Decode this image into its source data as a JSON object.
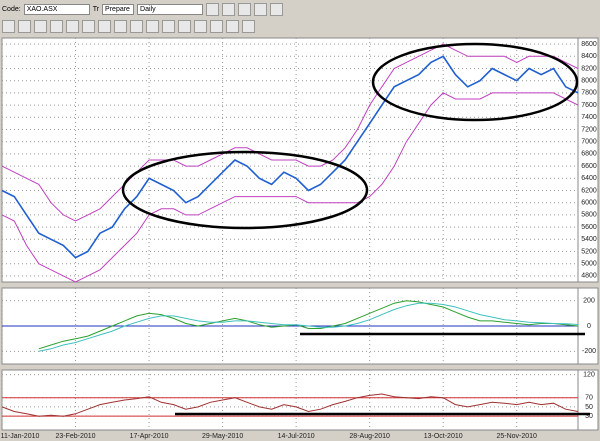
{
  "toolbar": {
    "code_label": "Code:",
    "code": "XAO.ASX",
    "tr": "Tr",
    "prepare": "Prepare",
    "period": "Daily"
  },
  "chart_data": [
    {
      "type": "line",
      "ylim": [
        4700,
        8700
      ],
      "yticks": [
        4800,
        5000,
        5200,
        5400,
        5600,
        5800,
        6000,
        6200,
        6400,
        6600,
        6800,
        7000,
        7200,
        7400,
        7600,
        7800,
        8000,
        8200,
        8400,
        8600
      ],
      "grid": true,
      "series": [
        {
          "color": "#1f5fd0",
          "values": [
            6200,
            6100,
            5800,
            5500,
            5400,
            5300,
            5100,
            5200,
            5500,
            5600,
            5900,
            6100,
            6400,
            6300,
            6200,
            6000,
            6100,
            6300,
            6500,
            6700,
            6600,
            6400,
            6300,
            6500,
            6400,
            6200,
            6300,
            6500,
            6700,
            7000,
            7300,
            7600,
            7900,
            8000,
            8100,
            8300,
            8400,
            8100,
            7900,
            8000,
            8200,
            8100,
            8000,
            8200,
            8100,
            8200,
            7900,
            7800
          ]
        },
        {
          "color": "#c040c0",
          "values": [
            6600,
            6500,
            6400,
            6300,
            6000,
            5800,
            5700,
            5800,
            5900,
            6100,
            6300,
            6500,
            6700,
            6700,
            6700,
            6600,
            6600,
            6700,
            6800,
            6900,
            6900,
            6800,
            6700,
            6700,
            6700,
            6600,
            6600,
            6700,
            6900,
            7200,
            7600,
            7900,
            8200,
            8300,
            8400,
            8500,
            8600,
            8500,
            8400,
            8400,
            8400,
            8400,
            8300,
            8400,
            8400,
            8400,
            8300,
            8200
          ]
        },
        {
          "color": "#c040c0",
          "values": [
            5800,
            5700,
            5300,
            5000,
            4900,
            4800,
            4700,
            4800,
            4900,
            5100,
            5300,
            5500,
            5800,
            5900,
            5900,
            5800,
            5800,
            5900,
            6000,
            6100,
            6100,
            6100,
            6100,
            6100,
            6100,
            6000,
            6000,
            6000,
            6000,
            6000,
            6100,
            6300,
            6600,
            7000,
            7300,
            7600,
            7800,
            7700,
            7700,
            7700,
            7800,
            7800,
            7800,
            7800,
            7800,
            7800,
            7700,
            7600
          ]
        }
      ]
    },
    {
      "type": "line",
      "ylim": [
        -300,
        300
      ],
      "yticks": [
        200,
        0,
        -200
      ],
      "grid": true,
      "hlines": [
        0
      ],
      "hline_color": "#2030c0",
      "series": [
        {
          "color": "#2ca02c",
          "values": [
            null,
            null,
            null,
            -180,
            -150,
            -120,
            -100,
            -80,
            -40,
            0,
            40,
            80,
            100,
            90,
            60,
            20,
            0,
            20,
            40,
            60,
            40,
            10,
            -10,
            0,
            10,
            -20,
            -20,
            0,
            20,
            60,
            100,
            140,
            180,
            200,
            190,
            170,
            150,
            110,
            70,
            40,
            40,
            30,
            20,
            10,
            20,
            20,
            10,
            0
          ]
        },
        {
          "color": "#40c0c0",
          "values": [
            null,
            null,
            null,
            -200,
            -180,
            -150,
            -130,
            -100,
            -70,
            -40,
            0,
            30,
            60,
            80,
            80,
            60,
            40,
            30,
            30,
            40,
            40,
            30,
            20,
            10,
            10,
            0,
            -10,
            -10,
            0,
            20,
            50,
            90,
            130,
            160,
            180,
            180,
            170,
            150,
            120,
            90,
            70,
            50,
            40,
            30,
            25,
            20,
            18,
            12
          ]
        }
      ]
    },
    {
      "type": "line",
      "ylim": [
        0,
        130
      ],
      "yticks": [
        120,
        70,
        50,
        30
      ],
      "grid": true,
      "hlines": [
        70,
        30
      ],
      "hline_color": "#d03030",
      "categories": [
        "11-Jan-2010",
        null,
        null,
        null,
        null,
        null,
        "23-Feb-2010",
        null,
        null,
        null,
        null,
        null,
        "17-Apr-2010",
        null,
        null,
        null,
        null,
        null,
        "29-May-2010",
        null,
        null,
        null,
        null,
        null,
        "14-Jul-2010",
        null,
        null,
        null,
        null,
        null,
        "28-Aug-2010",
        null,
        null,
        null,
        null,
        null,
        "13-Oct-2010",
        null,
        null,
        null,
        null,
        null,
        "25-Nov-2010",
        null,
        null,
        null,
        null,
        null
      ],
      "series": [
        {
          "color": "#a03030",
          "values": [
            50,
            40,
            35,
            30,
            32,
            30,
            35,
            45,
            55,
            60,
            65,
            68,
            72,
            60,
            55,
            45,
            50,
            60,
            65,
            70,
            60,
            50,
            45,
            55,
            50,
            40,
            45,
            55,
            62,
            70,
            75,
            78,
            72,
            70,
            68,
            72,
            70,
            55,
            50,
            55,
            60,
            58,
            55,
            60,
            55,
            58,
            45,
            40
          ]
        }
      ]
    }
  ]
}
